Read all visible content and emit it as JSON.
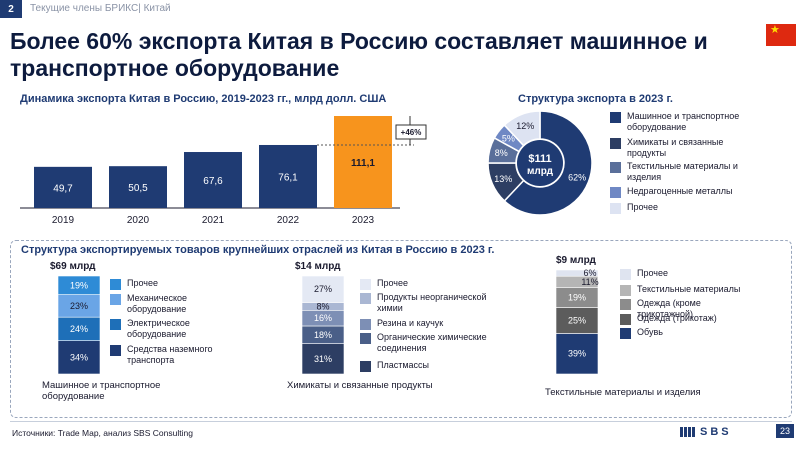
{
  "header": {
    "badge": "2",
    "breadcrumb": "Текущие члены БРИКС| Китай"
  },
  "headline": "Более 60% экспорта Китая в Россию составляет машинное и транспортное оборудование",
  "colors": {
    "navy": "#1f3b73",
    "orange": "#f7941d",
    "dark": "#2d3e63"
  },
  "chart_data": [
    {
      "type": "bar",
      "title": "Динамика экспорта Китая в Россию, 2019-2023 гг., млрд долл. США",
      "categories": [
        "2019",
        "2020",
        "2021",
        "2022",
        "2023"
      ],
      "values": [
        49.7,
        50.5,
        67.6,
        76.1,
        111.1
      ],
      "labels": [
        "49,7",
        "50,5",
        "67,6",
        "76,1",
        "111,1"
      ],
      "annotation": "+46%",
      "highlight": "2023",
      "ylim": [
        0,
        120
      ]
    },
    {
      "type": "pie",
      "title": "Структура экспорта в 2023 г.",
      "center_value": "$111",
      "center_unit": "млрд",
      "slices": [
        {
          "label": "Машинное и транспортное оборудование",
          "value": 62,
          "text": "62%",
          "color": "#1f3b73"
        },
        {
          "label": "Химикаты и связанные продукты",
          "value": 13,
          "text": "13%",
          "color": "#2d3e63"
        },
        {
          "label": "Текстильные материалы и изделия",
          "value": 8,
          "text": "8%",
          "color": "#5a6f9a"
        },
        {
          "label": "Недрагоценные металлы",
          "value": 5,
          "text": "5%",
          "color": "#6f88c4"
        },
        {
          "label": "Прочее",
          "value": 12,
          "text": "12%",
          "color": "#dde3f2"
        }
      ]
    },
    {
      "type": "bar",
      "title": "Структура экспортируемых товаров крупнейших отраслей из Китая в Россию в 2023 г.",
      "stacks": [
        {
          "total": "$69 млрд",
          "caption": "Машинное и транспортное оборудование",
          "segments": [
            {
              "label": "Средства наземного транспорта",
              "value": 34,
              "text": "34%",
              "color": "#1f3b73"
            },
            {
              "label": "Электрическое оборудование",
              "value": 24,
              "text": "24%",
              "color": "#1e6fb8"
            },
            {
              "label": "Механическое оборудование",
              "value": 23,
              "text": "23%",
              "color": "#6aa5e6"
            },
            {
              "label": "Прочее",
              "value": 19,
              "text": "19%",
              "color": "#2e8bd6"
            }
          ]
        },
        {
          "total": "$14 млрд",
          "caption": "Химикаты и связанные продукты",
          "segments": [
            {
              "label": "Пластмассы",
              "value": 31,
              "text": "31%",
              "color": "#2d3e63"
            },
            {
              "label": "Органические химические соединения",
              "value": 18,
              "text": "18%",
              "color": "#4a5f88"
            },
            {
              "label": "Резина и каучук",
              "value": 16,
              "text": "16%",
              "color": "#7d8fb5"
            },
            {
              "label": "Продукты неорганической химии",
              "value": 8,
              "text": "8%",
              "color": "#aab7d3"
            },
            {
              "label": "Прочее",
              "value": 27,
              "text": "27%",
              "color": "#e4e9f4"
            }
          ]
        },
        {
          "total": "$9 млрд",
          "caption": "Текстильные материалы и изделия",
          "segments": [
            {
              "label": "Обувь",
              "value": 39,
              "text": "39%",
              "color": "#1f3b73"
            },
            {
              "label": "Одежда (трикотаж)",
              "value": 25,
              "text": "25%",
              "color": "#5c5c5c"
            },
            {
              "label": "Одежда (кроме трикотажной)",
              "value": 19,
              "text": "19%",
              "color": "#8c8c8c"
            },
            {
              "label": "Текстильные материалы",
              "value": 11,
              "text": "11%",
              "color": "#b5b5b5"
            },
            {
              "label": "Прочее",
              "value": 6,
              "text": "6%",
              "color": "#dfe4f0"
            }
          ]
        }
      ]
    }
  ],
  "footer": {
    "source": "Источники: Trade Map, анализ SBS Consulting",
    "logo": "SBS",
    "page": "23"
  }
}
